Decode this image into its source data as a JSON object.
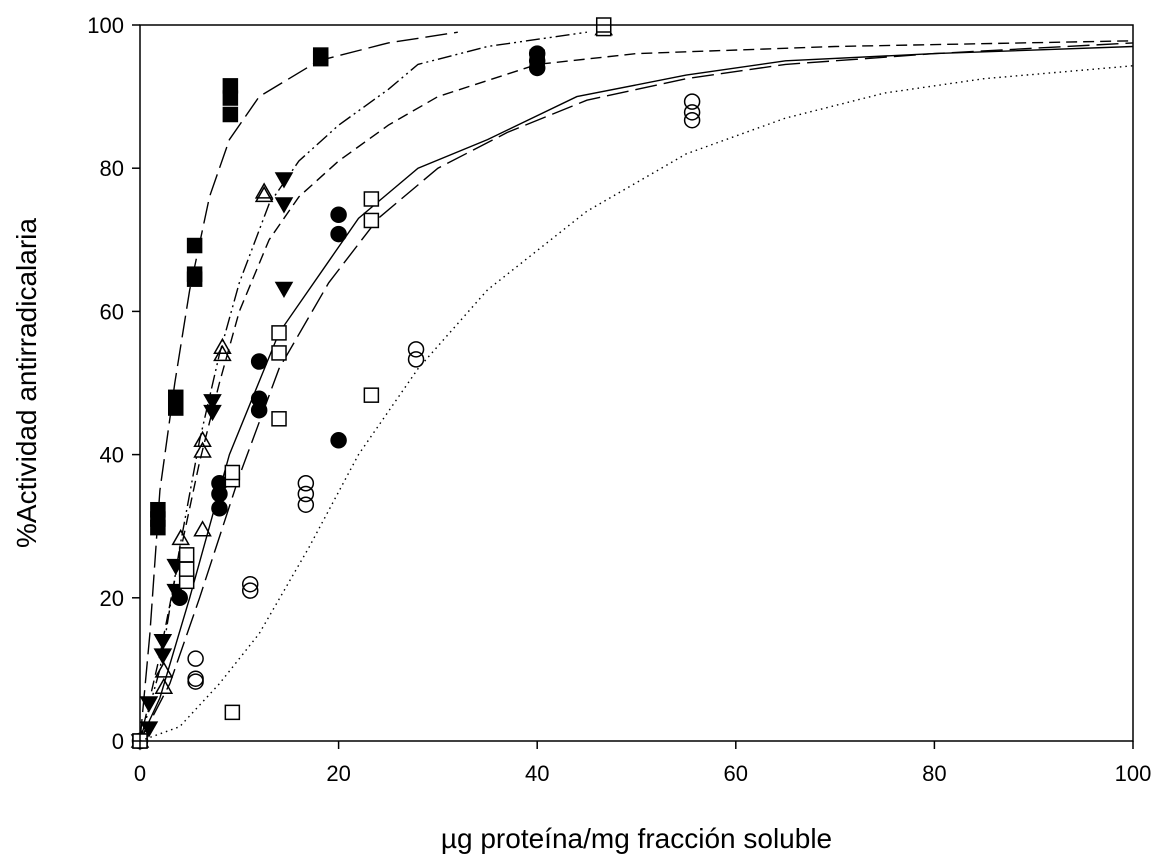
{
  "chart_data": {
    "type": "scatter",
    "title": "",
    "xlabel": "µg proteína/mg fracción soluble",
    "ylabel": "%Actividad antirradicalaria",
    "xlim": [
      0,
      100
    ],
    "ylim": [
      0,
      100
    ],
    "x_ticks": [
      "0",
      "20",
      "40",
      "60",
      "80",
      "100"
    ],
    "y_ticks": [
      "0",
      "20",
      "40",
      "60",
      "80",
      "100"
    ],
    "grid": false,
    "legend": "none",
    "colors": {
      "ink": "#000000",
      "background": "#ffffff"
    },
    "series": [
      {
        "marker": "filled-square",
        "points": [
          [
            0,
            0
          ],
          [
            1.8,
            29.8
          ],
          [
            1.8,
            31
          ],
          [
            1.8,
            32.3
          ],
          [
            3.6,
            46.5
          ],
          [
            3.6,
            47.3
          ],
          [
            3.6,
            48
          ],
          [
            5.5,
            64.5
          ],
          [
            5.5,
            65.2
          ],
          [
            5.5,
            69.2
          ],
          [
            9.1,
            87.5
          ],
          [
            9.1,
            89.8
          ],
          [
            9.1,
            91.5
          ],
          [
            18.2,
            95.3
          ],
          [
            18.2,
            95.8
          ],
          [
            40,
            95.5
          ]
        ],
        "fit": {
          "dash": "long-dash",
          "points": [
            [
              0,
              0
            ],
            [
              1,
              15
            ],
            [
              2,
              35
            ],
            [
              3.5,
              50
            ],
            [
              5,
              63
            ],
            [
              7,
              76
            ],
            [
              9,
              84
            ],
            [
              12,
              90
            ],
            [
              18,
              95
            ],
            [
              25,
              97.5
            ],
            [
              32,
              99
            ]
          ]
        }
      },
      {
        "marker": "filled-triangle-down",
        "points": [
          [
            0,
            0
          ],
          [
            0.9,
            1.8
          ],
          [
            0.9,
            5.3
          ],
          [
            2.3,
            12
          ],
          [
            2.3,
            14
          ],
          [
            3.6,
            21
          ],
          [
            3.6,
            24.5
          ],
          [
            7.3,
            46
          ],
          [
            7.3,
            47.5
          ],
          [
            14.5,
            63.2
          ],
          [
            14.5,
            75
          ],
          [
            14.5,
            78.5
          ]
        ],
        "fit": {
          "dash": "short-dash",
          "points": [
            [
              0,
              0
            ],
            [
              2,
              12
            ],
            [
              4,
              26
            ],
            [
              6,
              39
            ],
            [
              8,
              50
            ],
            [
              10,
              60
            ],
            [
              13,
              70
            ],
            [
              16,
              76
            ],
            [
              20,
              81
            ],
            [
              25,
              86
            ],
            [
              30,
              90
            ],
            [
              40,
              94.5
            ],
            [
              50,
              96
            ],
            [
              70,
              97
            ],
            [
              100,
              97.8
            ]
          ]
        }
      },
      {
        "marker": "open-triangle-up",
        "points": [
          [
            0,
            0
          ],
          [
            2.4,
            7.5
          ],
          [
            2.4,
            9.8
          ],
          [
            4.1,
            28.3
          ],
          [
            6.3,
            29.5
          ],
          [
            6.3,
            40.5
          ],
          [
            6.3,
            42
          ],
          [
            8.3,
            54
          ],
          [
            8.3,
            55
          ],
          [
            12.5,
            76.2
          ],
          [
            12.5,
            76.7
          ],
          [
            46.7,
            99.5
          ]
        ],
        "fit": {
          "dash": "dash-dot-dot",
          "points": [
            [
              0,
              0
            ],
            [
              2,
              10
            ],
            [
              4,
              27
            ],
            [
              6,
              42
            ],
            [
              8,
              54
            ],
            [
              10,
              64
            ],
            [
              13,
              75
            ],
            [
              16,
              81
            ],
            [
              20,
              86
            ],
            [
              25,
              91
            ],
            [
              28,
              94.5
            ],
            [
              35,
              97
            ],
            [
              45,
              99
            ]
          ]
        }
      },
      {
        "marker": "filled-circle",
        "points": [
          [
            0,
            0
          ],
          [
            4,
            20
          ],
          [
            8,
            32.5
          ],
          [
            8,
            34.5
          ],
          [
            8,
            36
          ],
          [
            12,
            46.2
          ],
          [
            12,
            47.8
          ],
          [
            12,
            53
          ],
          [
            20,
            42
          ],
          [
            20,
            70.8
          ],
          [
            20,
            73.5
          ],
          [
            40,
            94
          ],
          [
            40,
            95
          ],
          [
            40,
            96
          ]
        ],
        "fit": {
          "dash": "solid",
          "points": [
            [
              0,
              0
            ],
            [
              2,
              6
            ],
            [
              5,
              20
            ],
            [
              9,
              40
            ],
            [
              14,
              57
            ],
            [
              19,
              67
            ],
            [
              22,
              73
            ],
            [
              28,
              80
            ],
            [
              35,
              84
            ],
            [
              44,
              90
            ],
            [
              55,
              93
            ],
            [
              65,
              95
            ],
            [
              80,
              96
            ],
            [
              100,
              97
            ]
          ]
        }
      },
      {
        "marker": "open-square",
        "points": [
          [
            0,
            0
          ],
          [
            4.7,
            22.3
          ],
          [
            4.7,
            24
          ],
          [
            4.7,
            26
          ],
          [
            9.3,
            4
          ],
          [
            9.3,
            36.5
          ],
          [
            9.3,
            37.5
          ],
          [
            14,
            45
          ],
          [
            14,
            54.2
          ],
          [
            14,
            57
          ],
          [
            23.3,
            48.3
          ],
          [
            23.3,
            72.7
          ],
          [
            23.3,
            75.7
          ],
          [
            46.7,
            99.5
          ],
          [
            46.7,
            100
          ]
        ],
        "fit": {
          "dash": "long-dash",
          "points": [
            [
              0,
              0
            ],
            [
              3,
              8
            ],
            [
              6,
              20
            ],
            [
              10,
              37
            ],
            [
              14,
              52
            ],
            [
              19,
              64
            ],
            [
              24,
              73
            ],
            [
              30,
              80
            ],
            [
              37,
              85
            ],
            [
              45,
              89.5
            ],
            [
              55,
              92.5
            ],
            [
              65,
              94.5
            ],
            [
              80,
              96
            ],
            [
              100,
              97.5
            ]
          ]
        }
      },
      {
        "marker": "open-circle",
        "points": [
          [
            5.6,
            8.3
          ],
          [
            5.6,
            8.7
          ],
          [
            5.6,
            11.5
          ],
          [
            11.1,
            21
          ],
          [
            11.1,
            21.9
          ],
          [
            16.7,
            33
          ],
          [
            16.7,
            34.5
          ],
          [
            16.7,
            36
          ],
          [
            27.8,
            53.3
          ],
          [
            27.8,
            54.7
          ],
          [
            55.6,
            86.7
          ],
          [
            55.6,
            87.8
          ],
          [
            55.6,
            89.3
          ]
        ],
        "fit": {
          "dash": "dotted",
          "points": [
            [
              0,
              0
            ],
            [
              4,
              2
            ],
            [
              8,
              8
            ],
            [
              12,
              15
            ],
            [
              17,
              27
            ],
            [
              22,
              40
            ],
            [
              28,
              52
            ],
            [
              35,
              63
            ],
            [
              45,
              74
            ],
            [
              55,
              82
            ],
            [
              65,
              87
            ],
            [
              75,
              90.5
            ],
            [
              85,
              92.5
            ],
            [
              100,
              94.3
            ]
          ]
        }
      }
    ]
  }
}
